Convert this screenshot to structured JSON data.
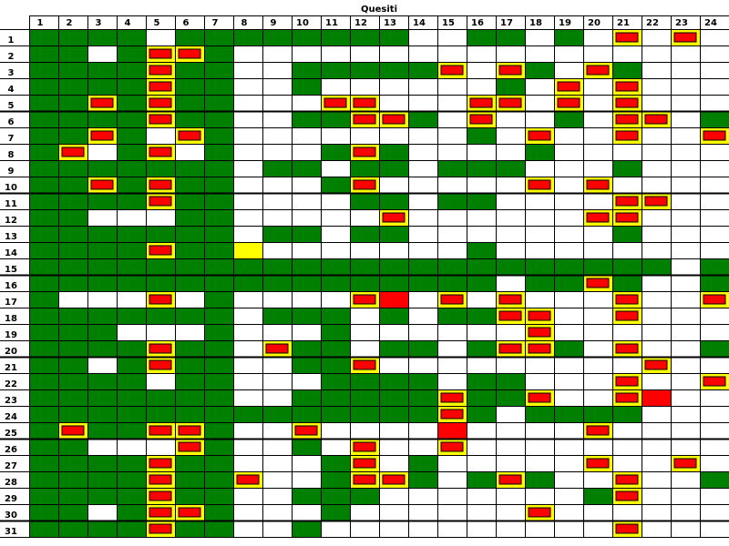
{
  "chart_data": {
    "type": "heatmap",
    "title": "Quesiti",
    "columns": [
      "1",
      "2",
      "3",
      "4",
      "5",
      "6",
      "7",
      "8",
      "9",
      "10",
      "11",
      "12",
      "13",
      "14",
      "15",
      "16",
      "17",
      "18",
      "19",
      "20",
      "21",
      "22",
      "23",
      "24"
    ],
    "rows": [
      "1",
      "2",
      "3",
      "4",
      "5",
      "6",
      "7",
      "8",
      "9",
      "10",
      "11",
      "12",
      "13",
      "14",
      "15",
      "16",
      "17",
      "18",
      "19",
      "20",
      "21",
      "22",
      "23",
      "24",
      "25",
      "26",
      "27",
      "28",
      "29",
      "30",
      "31"
    ],
    "legend": {
      "g": "green",
      "r": "red",
      "w": "white",
      "y": "yellow",
      "G": "green with yellow outline",
      "R": "red with yellow outline"
    },
    "cells": [
      "GGGGwGGGGGGGGwwGGwGwrwrw",
      "GGwGrrGwwwwwwwwwwwwwwwww",
      "GGGGrGGwwGGGGGrwrGwrGwww",
      "GGGGrGGwwGwwwwwwGwrwrwww",
      "GGrGrGGwwwrrwwwrrwrwrwww",
      "GGGGrGGwwGGrrGwrwwGwrrwG",
      "GGrGwrGwwwwwwwwGwrwwrwwr",
      "GrwGrwGwwwGrGwwwwGwwwwww",
      "GGGGGGGwGGwGGwGGGwwwGwww",
      "GGrGrGGwwwGrwwwwwrwrwwww",
      "GGGGrGGwwwwGGwGGwwwwrrww",
      "GGwwwGGwwwwwrwwwwwwrrwww",
      "GGGGGGGwGGwGGwwwwwwwGwww",
      "GGGGrGGywwwwwwwGwwwwwwww",
      "GGGGGGGGGGGGGGGGGGGGGGwG",
      "GGGGGGGGGGGGGGGGwGGrGwwG",
      "GwwwrwGwwwwrRwrwrwwwrwwr",
      "GGGGGGGwGGGwGwGGrrwwrwww",
      "GGGwwwGwwwGwwwwwwrwwwwww",
      "GGGGrGGwrGGwGGwGrrGwrwwG",
      "GGwGrGGwwGGrwwwwwwwwwrww",
      "GGGGwGGwwwGGGGwGGwwwrwwr",
      "GGGGGGGwwGGGGGrGGrwwrRww",
      "GGGGGGGGGGGGGGrGwGGGGwww",
      "GrGGrrGwwrwwwwRwwwwrwwww",
      "GGwwwrGwwGwrwwrwwwwwwwww",
      "GGGGrGGwwwGrwGwwwwwrwwrw",
      "GGGGrGGrwwGrrGwGrGwwrwwG",
      "GGGGrGGwwGGGwwwwwwwGrwww",
      "GGwGrrGwwwGwwwwwwrwwwwww",
      "GGGGrGGwwGwwwwwwwwwwrwww"
    ]
  }
}
